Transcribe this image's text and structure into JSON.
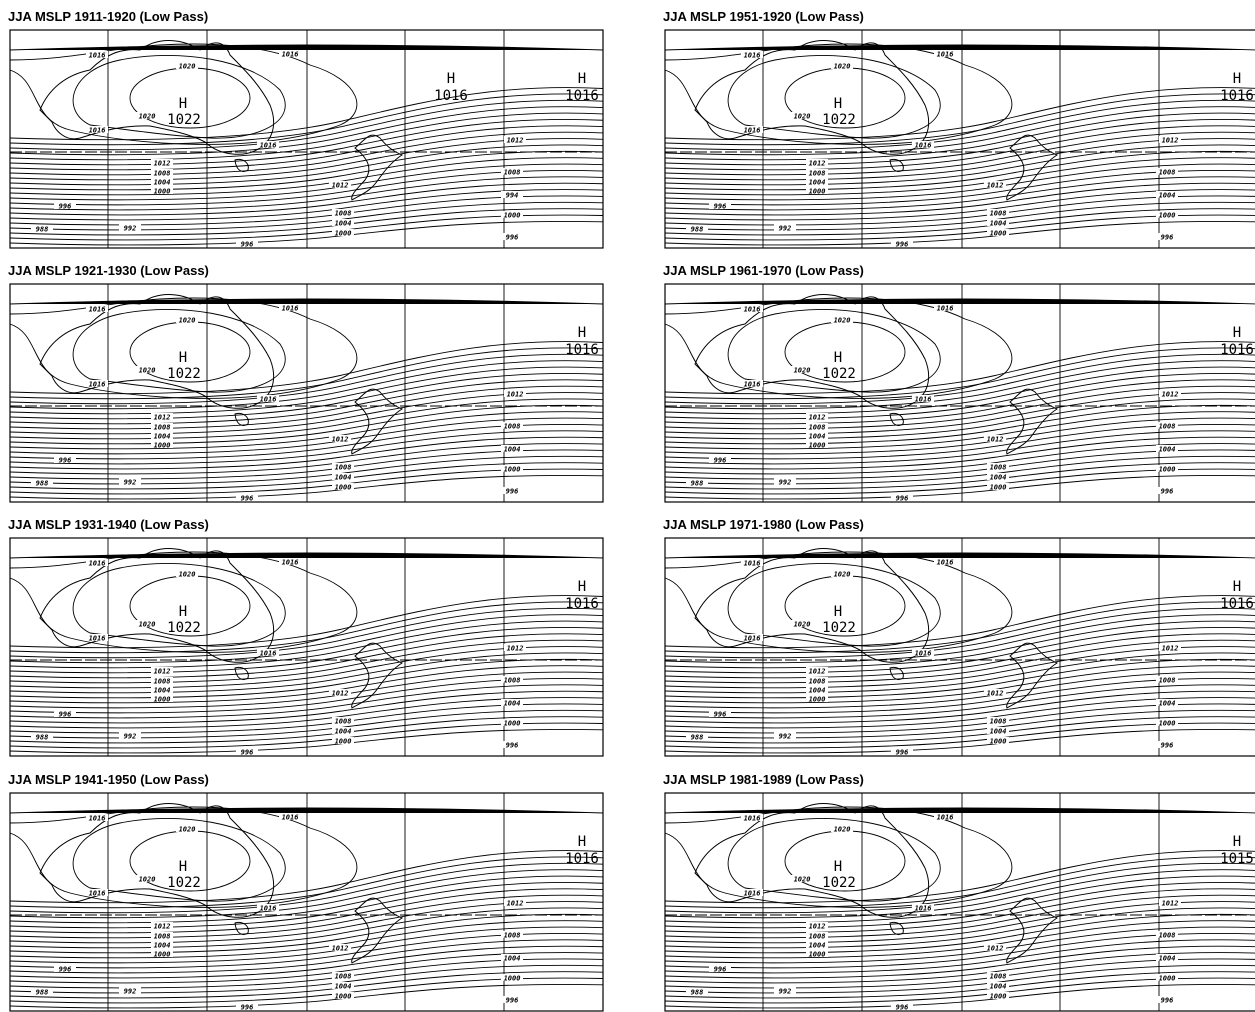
{
  "panels": [
    {
      "title": "JJA MSLP 1911-1920 (Low Pass)",
      "center_high": {
        "symbol": "H",
        "value": "1022"
      },
      "east_highs": [
        {
          "symbol": "H",
          "value": "1016"
        },
        {
          "symbol": "H",
          "value": "1016"
        }
      ],
      "contour_labels": [
        "1016",
        "1020",
        "1016",
        "1020",
        "1016",
        "1016",
        "1012",
        "1008",
        "1004",
        "1000",
        "996",
        "988",
        "992",
        "996",
        "1012",
        "1008",
        "1004",
        "1000",
        "1012",
        "1008",
        "994",
        "1000",
        "996"
      ]
    },
    {
      "title": "JJA MSLP 1951-1920 (Low Pass)",
      "center_high": {
        "symbol": "H",
        "value": "1022"
      },
      "east_highs": [
        {
          "symbol": "H",
          "value": "1016"
        }
      ],
      "contour_labels": [
        "1016",
        "1020",
        "1016",
        "1020",
        "1016",
        "1016",
        "1012",
        "1008",
        "1004",
        "1000",
        "996",
        "988",
        "992",
        "996",
        "1012",
        "1008",
        "1004",
        "1000",
        "1012",
        "1008",
        "1004",
        "1000",
        "996"
      ]
    },
    {
      "title": "JJA MSLP 1921-1930 (Low Pass)",
      "center_high": {
        "symbol": "H",
        "value": "1022"
      },
      "east_highs": [
        {
          "symbol": "H",
          "value": "1016"
        }
      ],
      "contour_labels": [
        "1016",
        "1020",
        "1016",
        "1020",
        "1016",
        "1016",
        "1012",
        "1008",
        "1004",
        "1000",
        "996",
        "988",
        "992",
        "996",
        "1012",
        "1008",
        "1004",
        "1000",
        "1012",
        "1008",
        "1004",
        "1000",
        "996"
      ]
    },
    {
      "title": "JJA MSLP 1961-1970 (Low Pass)",
      "center_high": {
        "symbol": "H",
        "value": "1022"
      },
      "east_highs": [
        {
          "symbol": "H",
          "value": "1016"
        }
      ],
      "contour_labels": [
        "1016",
        "1020",
        "1016",
        "1020",
        "1016",
        "1016",
        "1012",
        "1008",
        "1004",
        "1000",
        "996",
        "988",
        "992",
        "996",
        "1012",
        "1008",
        "1004",
        "1000",
        "1012",
        "1008",
        "1004",
        "1000",
        "996"
      ]
    },
    {
      "title": "JJA MSLP 1931-1940 (Low Pass)",
      "center_high": {
        "symbol": "H",
        "value": "1022"
      },
      "east_highs": [
        {
          "symbol": "H",
          "value": "1016"
        }
      ],
      "contour_labels": [
        "1016",
        "1020",
        "1016",
        "1020",
        "1016",
        "1016",
        "1012",
        "1008",
        "1004",
        "1000",
        "996",
        "988",
        "992",
        "996",
        "1012",
        "1008",
        "1004",
        "1000",
        "1012",
        "1008",
        "1004",
        "1000",
        "996"
      ]
    },
    {
      "title": "JJA MSLP 1971-1980 (Low Pass)",
      "center_high": {
        "symbol": "H",
        "value": "1022"
      },
      "east_highs": [
        {
          "symbol": "H",
          "value": "1016"
        }
      ],
      "contour_labels": [
        "1016",
        "1020",
        "1016",
        "1020",
        "1016",
        "1016",
        "1012",
        "1008",
        "1004",
        "1000",
        "996",
        "988",
        "992",
        "996",
        "1012",
        "1008",
        "1004",
        "1000",
        "1012",
        "1008",
        "1004",
        "1000",
        "996"
      ]
    },
    {
      "title": "JJA MSLP 1941-1950 (Low Pass)",
      "center_high": {
        "symbol": "H",
        "value": "1022"
      },
      "east_highs": [
        {
          "symbol": "H",
          "value": "1016"
        }
      ],
      "contour_labels": [
        "1016",
        "1020",
        "1016",
        "1020",
        "1016",
        "1016",
        "1012",
        "1008",
        "1004",
        "1000",
        "996",
        "988",
        "992",
        "996",
        "1012",
        "1008",
        "1004",
        "1000",
        "1012",
        "1008",
        "1004",
        "1000",
        "996"
      ]
    },
    {
      "title": "JJA MSLP 1981-1989 (Low Pass)",
      "center_high": {
        "symbol": "H",
        "value": "1022"
      },
      "east_highs": [
        {
          "symbol": "H",
          "value": "1015"
        }
      ],
      "contour_labels": [
        "1016",
        "1020",
        "1016",
        "1020",
        "1016",
        "1016",
        "1012",
        "1008",
        "1004",
        "1000",
        "996",
        "988",
        "992",
        "996",
        "1012",
        "1008",
        "1004",
        "1000",
        "1012",
        "1008",
        "1004",
        "1000",
        "996"
      ]
    }
  ]
}
